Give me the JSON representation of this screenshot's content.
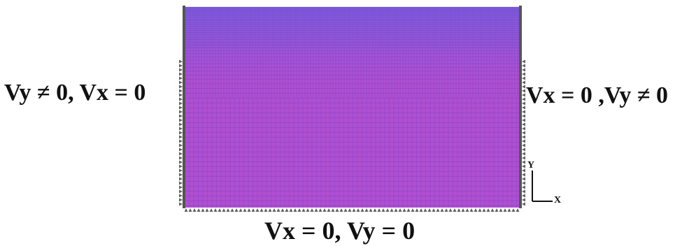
{
  "boundary_conditions": {
    "left": "Vy ≠ 0, Vx = 0",
    "right": "Vx = 0 ,Vy ≠ 0",
    "bottom": "Vx = 0, Vy = 0"
  },
  "axes": {
    "y_label": "Y",
    "x_label": "X"
  },
  "colors": {
    "mesh_fill": "#b04fd0",
    "mesh_fill_top": "#8a5ee0",
    "mesh_line": "#5b34c8",
    "mesh_line_fine": "#4a3fc0",
    "wall": "#555555",
    "support": "#606060",
    "text": "#111111"
  }
}
